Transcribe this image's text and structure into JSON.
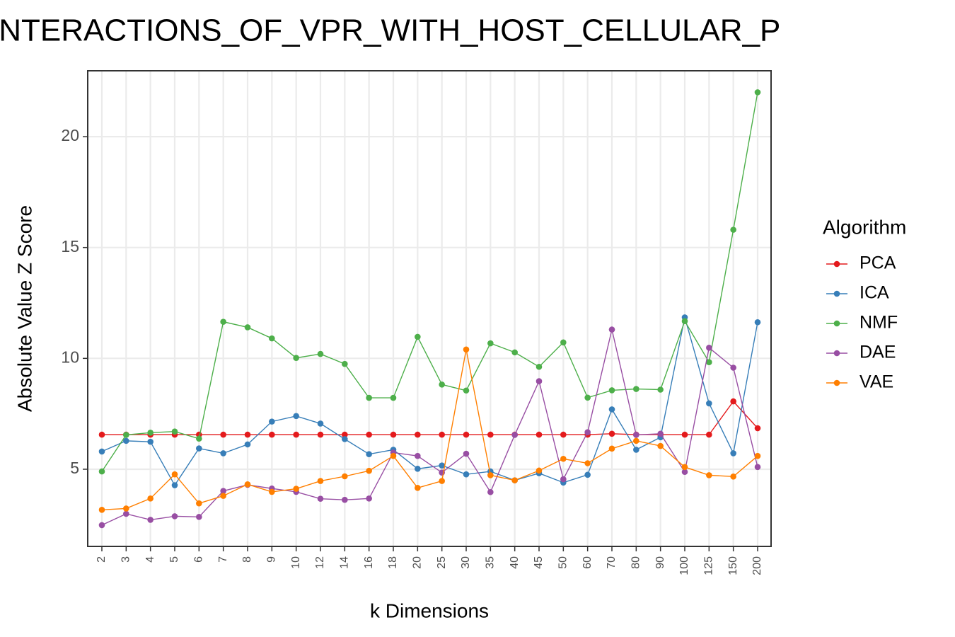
{
  "chart_data": {
    "type": "line",
    "title": "INTERACTIONS_OF_VPR_WITH_HOST_CELLULAR_P",
    "x_label": "k Dimensions",
    "y_label": "Absolute Value Z Score",
    "legend_title": "Algorithm",
    "legend_position": "right",
    "grid": true,
    "categories": [
      2,
      3,
      4,
      5,
      6,
      7,
      8,
      9,
      10,
      12,
      14,
      16,
      18,
      20,
      25,
      30,
      35,
      40,
      45,
      50,
      60,
      70,
      80,
      90,
      100,
      125,
      150,
      200
    ],
    "ylim": [
      1.52,
      22.97
    ],
    "yticks": [
      5,
      10,
      15,
      20
    ],
    "series": [
      {
        "name": "PCA",
        "color": "#e41a1c",
        "values": [
          6.56,
          6.56,
          6.56,
          6.56,
          6.56,
          6.56,
          6.56,
          6.56,
          6.56,
          6.56,
          6.56,
          6.56,
          6.56,
          6.56,
          6.56,
          6.56,
          6.56,
          6.56,
          6.56,
          6.56,
          6.56,
          6.6,
          6.56,
          6.56,
          6.56,
          6.56,
          8.06,
          6.85
        ]
      },
      {
        "name": "ICA",
        "color": "#377eb8",
        "values": [
          5.8,
          6.28,
          6.24,
          4.28,
          5.94,
          5.72,
          6.12,
          7.15,
          7.4,
          7.06,
          6.36,
          5.68,
          5.88,
          5.02,
          5.17,
          4.77,
          4.9,
          4.5,
          4.82,
          4.4,
          4.75,
          7.7,
          5.88,
          6.44,
          11.85,
          7.97,
          5.72,
          11.63
        ]
      },
      {
        "name": "NMF",
        "color": "#4daf4a",
        "values": [
          4.9,
          6.55,
          6.65,
          6.7,
          6.38,
          11.65,
          11.4,
          10.9,
          10.02,
          10.2,
          9.75,
          8.22,
          8.22,
          10.97,
          8.82,
          8.55,
          10.68,
          10.27,
          9.62,
          10.72,
          8.23,
          8.56,
          8.62,
          8.59,
          11.68,
          9.83,
          15.8,
          22.0
        ]
      },
      {
        "name": "DAE",
        "color": "#984ea3",
        "values": [
          2.48,
          2.99,
          2.72,
          2.88,
          2.85,
          4.02,
          4.3,
          4.13,
          3.98,
          3.67,
          3.62,
          3.68,
          5.75,
          5.6,
          4.85,
          5.7,
          3.97,
          6.55,
          8.97,
          4.55,
          6.67,
          11.3,
          6.55,
          6.6,
          4.88,
          10.48,
          9.58,
          5.1
        ]
      },
      {
        "name": "VAE",
        "color": "#ff7f00",
        "values": [
          3.17,
          3.23,
          3.68,
          4.77,
          3.46,
          3.8,
          4.32,
          3.98,
          4.12,
          4.47,
          4.68,
          4.93,
          5.6,
          4.16,
          4.47,
          10.4,
          4.73,
          4.5,
          4.94,
          5.47,
          5.27,
          5.93,
          6.28,
          6.05,
          5.1,
          4.73,
          4.67,
          5.6
        ]
      }
    ]
  }
}
